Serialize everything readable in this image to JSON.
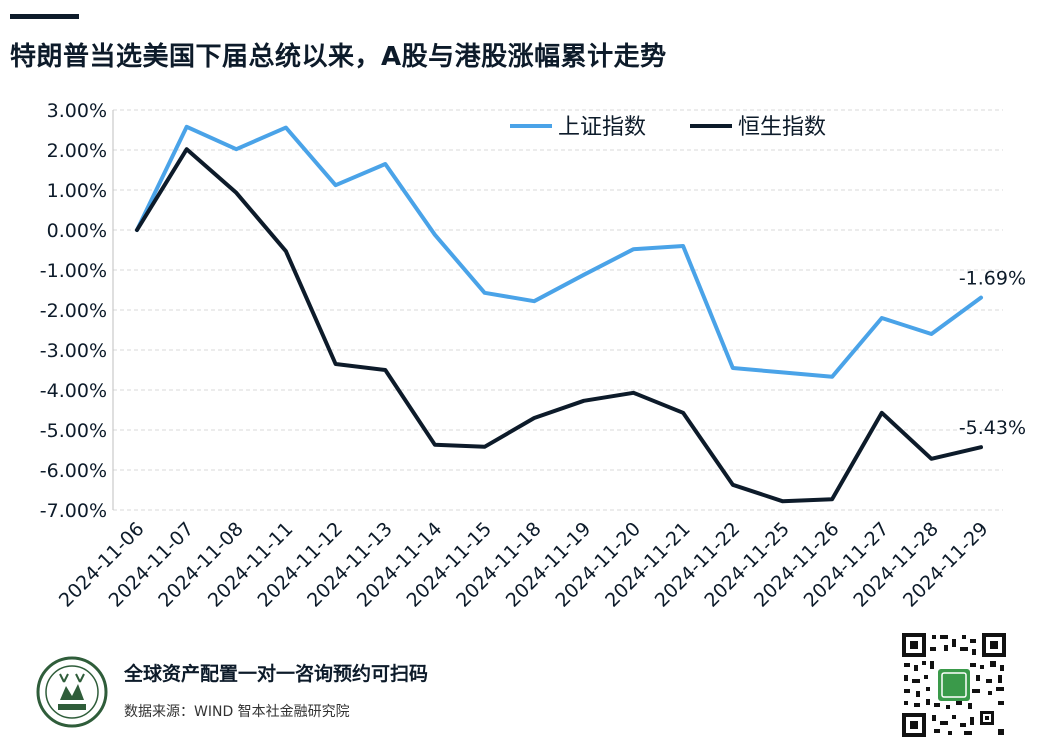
{
  "header": {
    "title": "特朗普当选美国下届总统以来，A股与港股涨幅累计走势"
  },
  "footer": {
    "cta": "全球资产配置一对一咨询预约可扫码",
    "source": "数据来源：WIND 智本社金融研究院",
    "logo_icon": "institute-seal-logo-icon",
    "qr_icon": "qr-code-icon"
  },
  "chart_data": {
    "type": "line",
    "categories": [
      "2024-11-06",
      "2024-11-07",
      "2024-11-08",
      "2024-11-11",
      "2024-11-12",
      "2024-11-13",
      "2024-11-14",
      "2024-11-15",
      "2024-11-18",
      "2024-11-19",
      "2024-11-20",
      "2024-11-21",
      "2024-11-22",
      "2024-11-25",
      "2024-11-26",
      "2024-11-27",
      "2024-11-28",
      "2024-11-29"
    ],
    "series": [
      {
        "name": "上证指数",
        "color": "#4aa3e8",
        "values": [
          0.0,
          2.58,
          2.02,
          2.56,
          1.12,
          1.65,
          -0.12,
          -1.57,
          -1.78,
          -1.12,
          -0.48,
          -0.4,
          -3.45,
          -3.56,
          -3.67,
          -2.2,
          -2.6,
          -1.69
        ]
      },
      {
        "name": "恒生指数",
        "color": "#0d1b2a",
        "values": [
          0.0,
          2.02,
          0.93,
          -0.53,
          -3.35,
          -3.5,
          -5.37,
          -5.42,
          -4.7,
          -4.27,
          -4.07,
          -4.57,
          -6.37,
          -6.78,
          -6.73,
          -4.57,
          -5.72,
          -5.43
        ]
      }
    ],
    "end_labels": [
      "-1.69%",
      "-5.43%"
    ],
    "yticks": [
      "3.00%",
      "2.00%",
      "1.00%",
      "0.00%",
      "-1.00%",
      "-2.00%",
      "-3.00%",
      "-4.00%",
      "-5.00%",
      "-6.00%",
      "-7.00%"
    ],
    "ylim": [
      -7,
      3
    ],
    "ytick_values": [
      3,
      2,
      1,
      0,
      -1,
      -2,
      -3,
      -4,
      -5,
      -6,
      -7
    ],
    "grid": "horizontal-dashed",
    "legend_position": "top-right",
    "xlabel": "",
    "ylabel": ""
  }
}
